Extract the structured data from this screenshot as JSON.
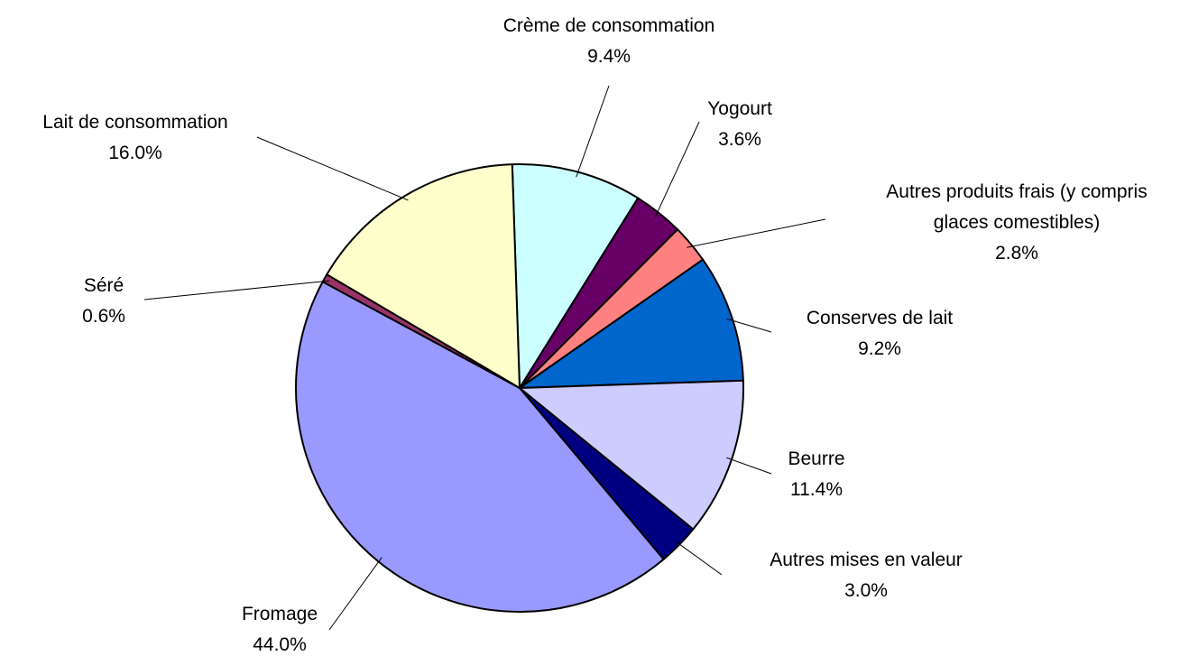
{
  "chart_data": {
    "type": "pie",
    "categories": [
      "Crème de consommation",
      "Yogourt",
      "Autres produits frais (y compris glaces comestibles)",
      "Conserves de lait",
      "Beurre",
      "Autres mises en valeur",
      "Fromage",
      "Séré",
      "Lait de consommation"
    ],
    "values": [
      9.4,
      3.6,
      2.8,
      9.2,
      11.4,
      3.0,
      44.0,
      0.6,
      16.0
    ],
    "value_labels": [
      "9.4%",
      "3.6%",
      "2.8%",
      "9.2%",
      "11.4%",
      "3.0%",
      "44.0%",
      "0.6%",
      "16.0%"
    ],
    "colors": [
      "#ccffff",
      "#660066",
      "#ff8080",
      "#0066cc",
      "#ccccff",
      "#000080",
      "#9999ff",
      "#993366",
      "#ffffcc"
    ]
  }
}
